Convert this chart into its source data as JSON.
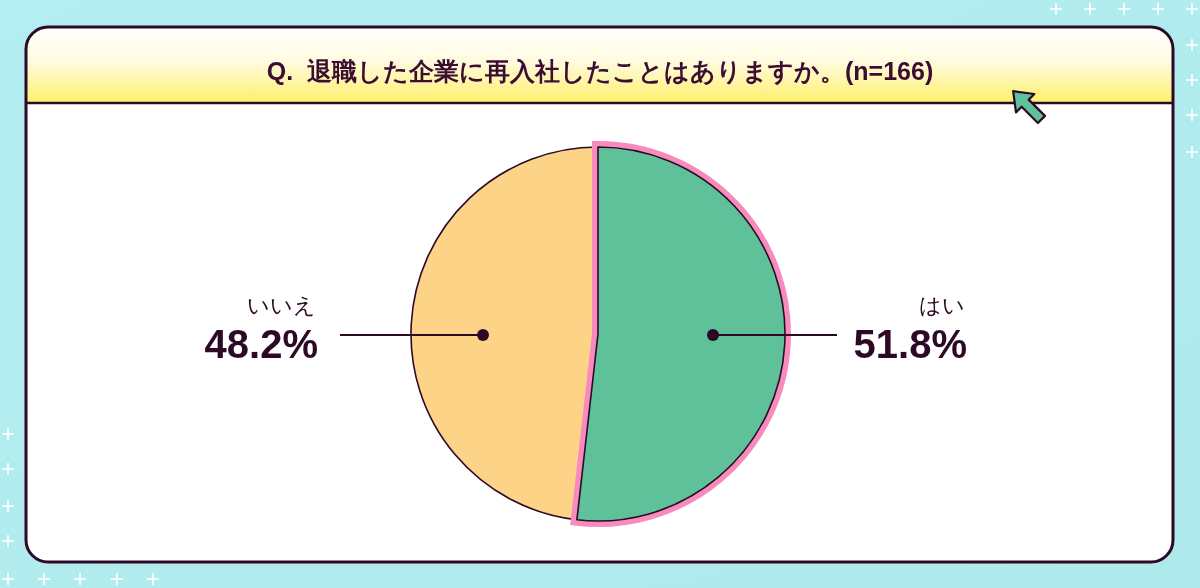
{
  "chart_data": {
    "type": "pie",
    "title": "Q.  退職した企業に再入社したことはありますか。(n=166)",
    "categories": [
      "はい",
      "いいえ"
    ],
    "values": [
      51.8,
      48.2
    ],
    "colors": [
      "#5fc19a",
      "#fdd387"
    ],
    "value_labels": [
      "51.8%",
      "48.2%"
    ]
  }
}
